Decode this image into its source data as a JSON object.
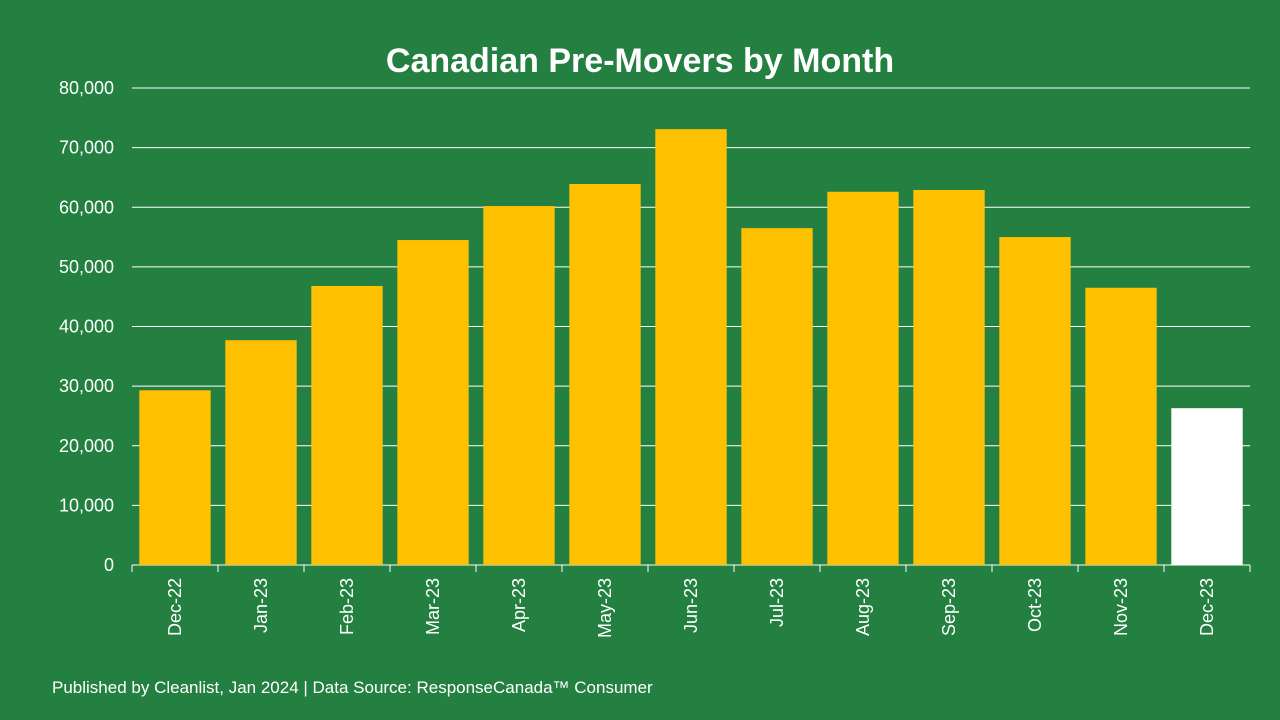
{
  "chart_data": {
    "type": "bar",
    "title": "Canadian Pre-Movers by Month",
    "categories": [
      "Dec-22",
      "Jan-23",
      "Feb-23",
      "Mar-23",
      "Apr-23",
      "May-23",
      "Jun-23",
      "Jul-23",
      "Aug-23",
      "Sep-23",
      "Oct-23",
      "Nov-23",
      "Dec-23"
    ],
    "values": [
      29300,
      37700,
      46800,
      54500,
      60200,
      63900,
      73100,
      56500,
      62600,
      62900,
      55000,
      46500,
      26300
    ],
    "highlight_index": 12,
    "ylim": [
      0,
      80000
    ],
    "yticks": [
      "0",
      "10,000",
      "20,000",
      "30,000",
      "40,000",
      "50,000",
      "60,000",
      "70,000",
      "80,000"
    ],
    "xlabel": "",
    "ylabel": "",
    "grid": true,
    "colors": {
      "bar": "#FFC000",
      "highlight": "#FFFFFF",
      "background": "#238040"
    }
  },
  "footer": "Published by Cleanlist, Jan 2024 | Data Source: ResponseCanada™ Consumer"
}
